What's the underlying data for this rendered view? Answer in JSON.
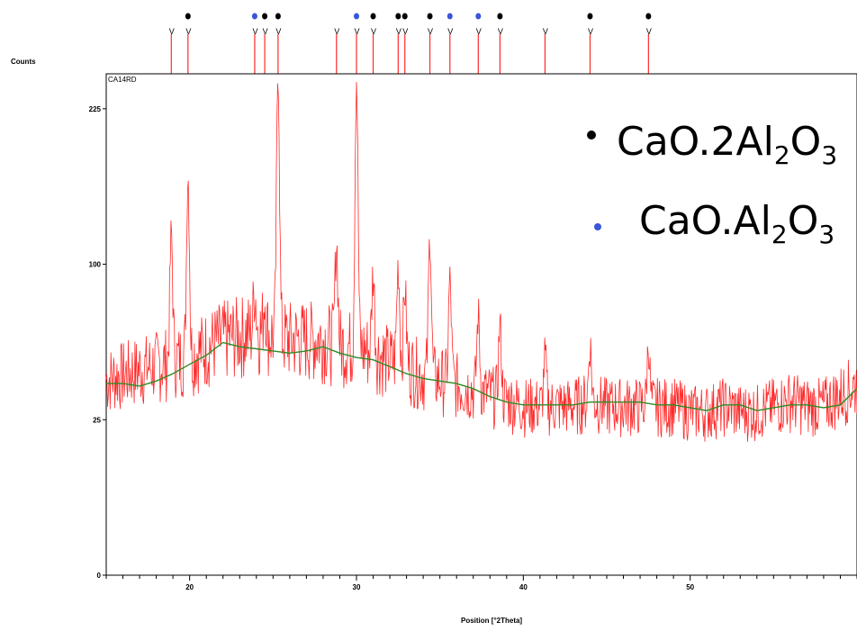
{
  "chart_data": {
    "type": "line",
    "ylabel": "Counts",
    "xlabel": "Position [°2Theta]",
    "sample_label": "CA14RD",
    "y_scale": "sqrt",
    "ylim": [
      0,
      260
    ],
    "xlim": [
      15,
      60
    ],
    "y_ticks": [
      0,
      25,
      100,
      225
    ],
    "x_ticks": [
      20,
      30,
      40,
      50
    ],
    "grid": false,
    "colors": {
      "pattern": "#ff2a2a",
      "background_fit": "#2e8b22",
      "phase_ca2": "#000000",
      "phase_ca": "#3a55d8"
    },
    "series": [
      {
        "name": "measured",
        "x": [
          15,
          16,
          17,
          18,
          19,
          20,
          21,
          22,
          23,
          24,
          25,
          26,
          27,
          28,
          29,
          30,
          31,
          32,
          33,
          34,
          35,
          36,
          37,
          38,
          39,
          40,
          41,
          42,
          43,
          44,
          45,
          46,
          47,
          48,
          49,
          50,
          51,
          52,
          53,
          54,
          55,
          56,
          57,
          58,
          59,
          60
        ],
        "y": [
          40,
          42,
          44,
          46,
          48,
          50,
          54,
          58,
          60,
          62,
          60,
          58,
          58,
          58,
          55,
          54,
          52,
          48,
          46,
          42,
          40,
          38,
          36,
          34,
          32,
          30,
          30,
          30,
          30,
          32,
          30,
          30,
          30,
          30,
          30,
          28,
          28,
          30,
          28,
          28,
          30,
          32,
          30,
          30,
          34,
          38
        ]
      },
      {
        "name": "background",
        "x": [
          15,
          16,
          17,
          18,
          19,
          20,
          21,
          22,
          23,
          24,
          25,
          26,
          27,
          28,
          29,
          30,
          31,
          32,
          33,
          34,
          35,
          36,
          37,
          38,
          39,
          40,
          41,
          42,
          43,
          44,
          45,
          46,
          47,
          48,
          49,
          50,
          51,
          52,
          53,
          54,
          55,
          56,
          57,
          58,
          59,
          60
        ],
        "y": [
          38,
          38,
          37,
          39,
          42,
          46,
          50,
          56,
          54,
          53,
          52,
          51,
          52,
          54,
          51,
          49,
          48,
          45,
          42,
          40,
          39,
          38,
          36,
          33,
          31,
          30,
          30,
          30,
          30,
          31,
          31,
          31,
          31,
          30,
          30,
          29,
          28,
          30,
          30,
          28,
          29,
          30,
          30,
          29,
          30,
          36
        ]
      }
    ],
    "peaks": [
      {
        "x": 18.9,
        "y": 120
      },
      {
        "x": 19.9,
        "y": 165
      },
      {
        "x": 23.9,
        "y": 85
      },
      {
        "x": 24.5,
        "y": 80
      },
      {
        "x": 25.3,
        "y": 260
      },
      {
        "x": 28.8,
        "y": 115
      },
      {
        "x": 30.0,
        "y": 255
      },
      {
        "x": 31.0,
        "y": 95
      },
      {
        "x": 32.5,
        "y": 100
      },
      {
        "x": 32.9,
        "y": 85
      },
      {
        "x": 34.4,
        "y": 120
      },
      {
        "x": 35.6,
        "y": 90
      },
      {
        "x": 37.3,
        "y": 70
      },
      {
        "x": 38.6,
        "y": 65
      },
      {
        "x": 41.3,
        "y": 50
      },
      {
        "x": 44.0,
        "y": 55
      },
      {
        "x": 47.5,
        "y": 55
      }
    ],
    "reference_lines": [
      18.9,
      19.9,
      23.9,
      24.5,
      25.3,
      28.8,
      30.0,
      31.0,
      32.5,
      32.9,
      34.4,
      35.6,
      37.3,
      38.6,
      41.3,
      44.0,
      47.5
    ],
    "phase_markers": [
      {
        "x": 19.9,
        "phase": "CaO.2Al2O3"
      },
      {
        "x": 23.9,
        "phase": "CaO.Al2O3"
      },
      {
        "x": 24.5,
        "phase": "CaO.2Al2O3"
      },
      {
        "x": 25.3,
        "phase": "CaO.2Al2O3"
      },
      {
        "x": 30.0,
        "phase": "CaO.Al2O3"
      },
      {
        "x": 31.0,
        "phase": "CaO.2Al2O3"
      },
      {
        "x": 32.5,
        "phase": "CaO.2Al2O3"
      },
      {
        "x": 32.9,
        "phase": "CaO.2Al2O3"
      },
      {
        "x": 34.4,
        "phase": "CaO.2Al2O3"
      },
      {
        "x": 35.6,
        "phase": "CaO.Al2O3"
      },
      {
        "x": 37.3,
        "phase": "CaO.Al2O3"
      },
      {
        "x": 38.6,
        "phase": "CaO.2Al2O3"
      },
      {
        "x": 44.0,
        "phase": "CaO.2Al2O3"
      },
      {
        "x": 47.5,
        "phase": "CaO.2Al2O3"
      }
    ],
    "legend": {
      "placement": "top-right",
      "entries": [
        {
          "label": "CaO.2Al",
          "sub1": "2",
          "mid": "O",
          "sub2": "3",
          "color": "#000000"
        },
        {
          "label": "CaO.Al",
          "sub1": "2",
          "mid": "O",
          "sub2": "3",
          "color": "#3a55d8"
        }
      ]
    }
  }
}
